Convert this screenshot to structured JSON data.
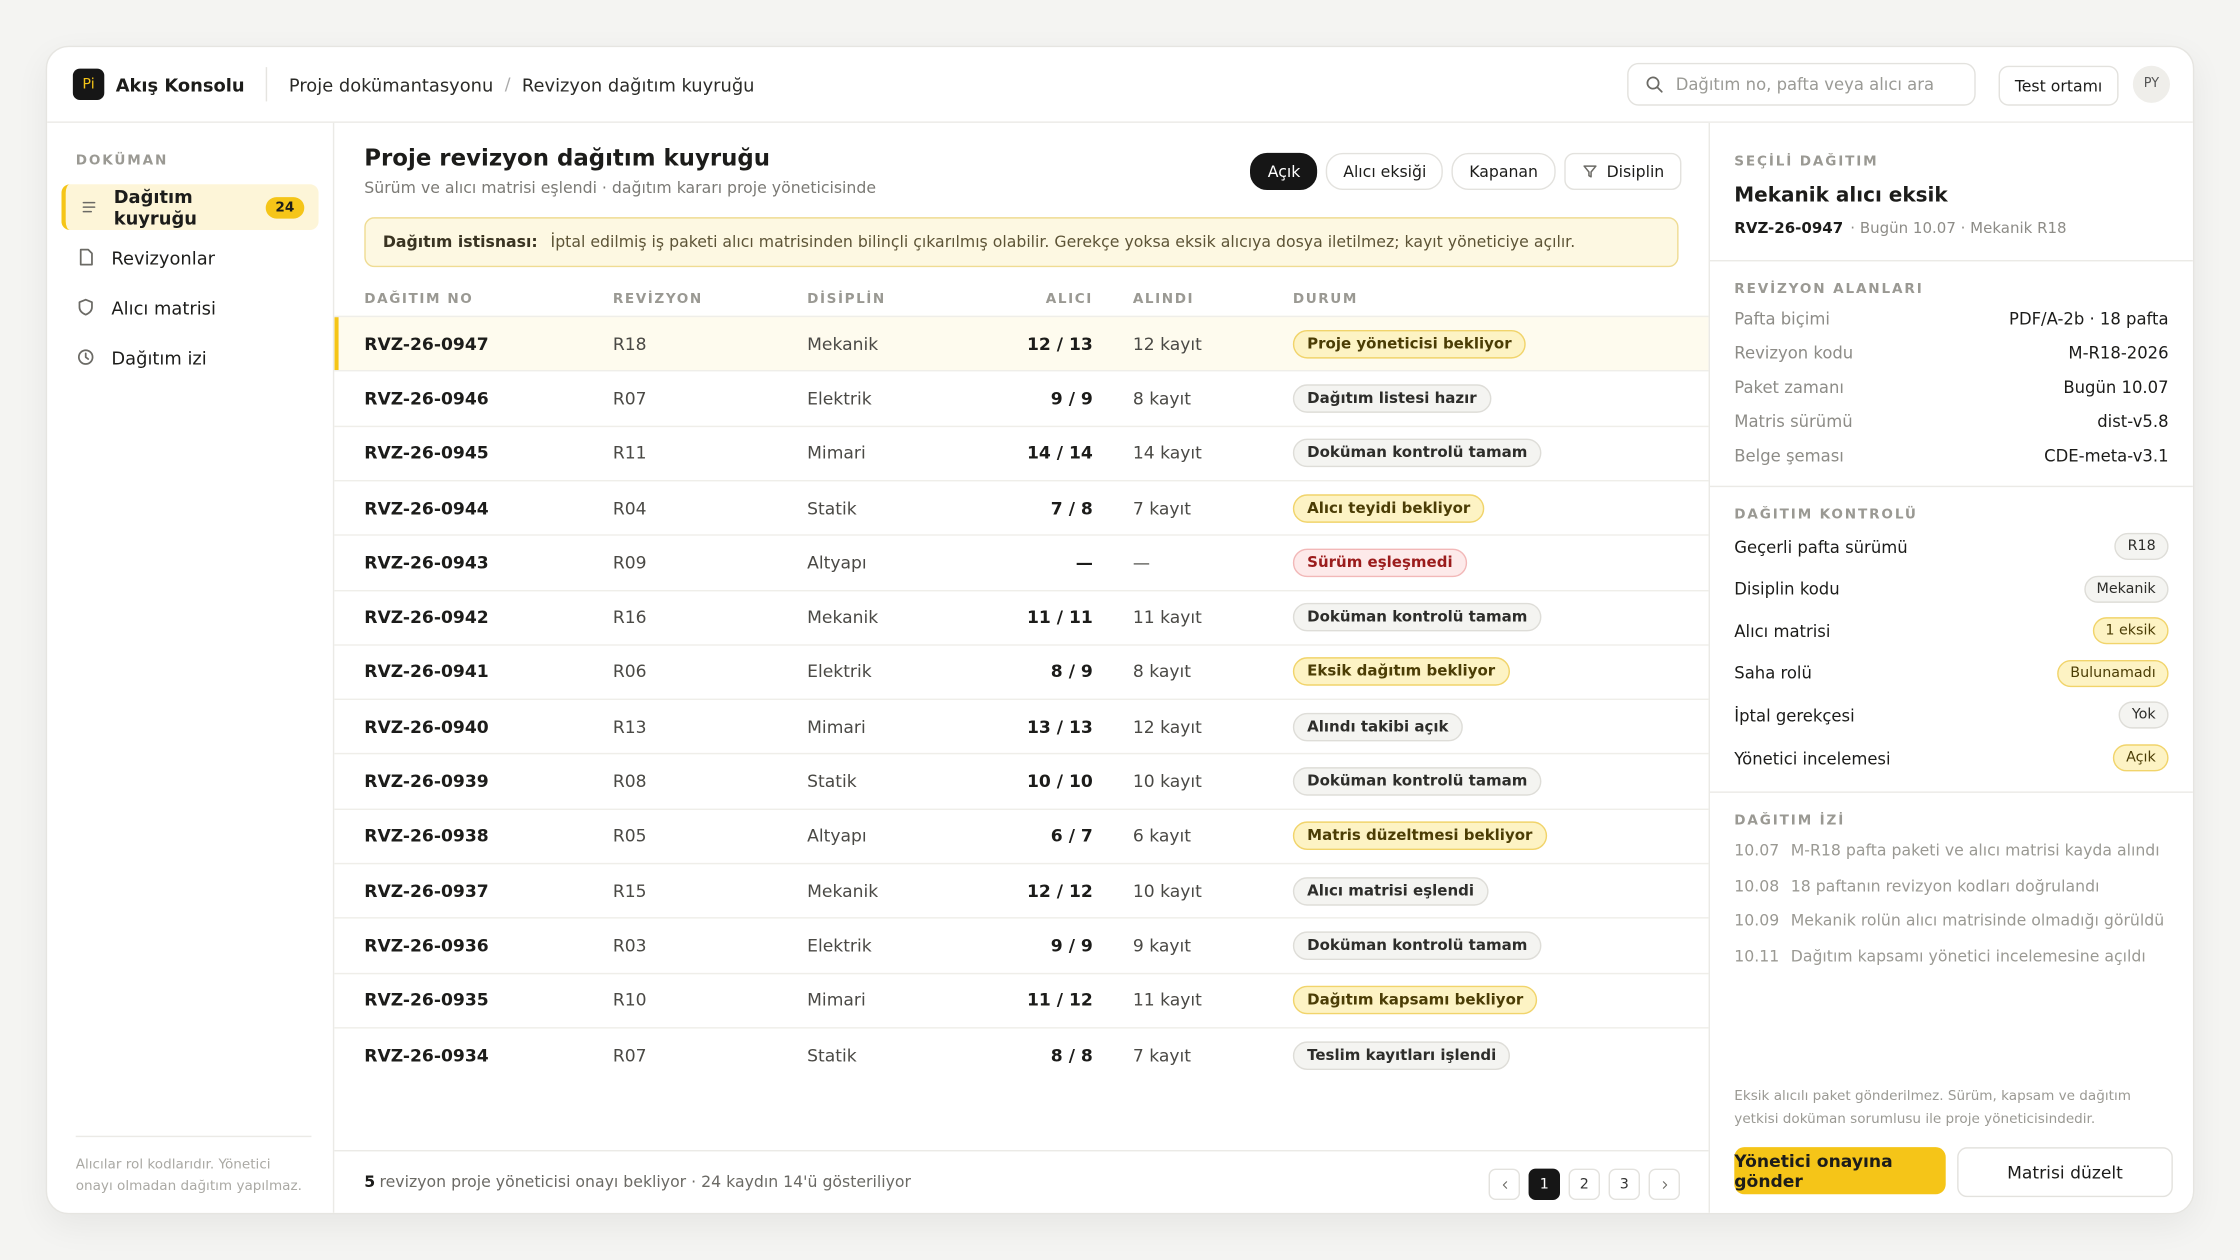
{
  "header": {
    "logo": "Pi",
    "app": "Akış Konsolu",
    "breadcrumb": [
      "Proje dokümantasyonu",
      "Revizyon dağıtım kuyruğu"
    ],
    "breadcrumb_sep": "/",
    "search_placeholder": "Dağıtım no, pafta veya alıcı ara",
    "env": "Test ortamı",
    "avatar": "PY"
  },
  "sidebar": {
    "section": "DOKÜMAN",
    "items": [
      {
        "label": "Dağıtım kuyruğu",
        "badge": "24",
        "active": true
      },
      {
        "label": "Revizyonlar"
      },
      {
        "label": "Alıcı matrisi"
      },
      {
        "label": "Dağıtım izi"
      }
    ],
    "note": "Alıcılar rol kodlarıdır. Yönetici onayı olmadan dağıtım yapılmaz."
  },
  "main": {
    "title": "Proje revizyon dağıtım kuyruğu",
    "subtitle": "Sürüm ve alıcı matrisi eşlendi · dağıtım kararı proje yöneticisinde",
    "filters": [
      {
        "label": "Açık",
        "active": true
      },
      {
        "label": "Alıcı eksiği"
      },
      {
        "label": "Kapanan"
      }
    ],
    "filter_menu": "Disiplin",
    "notice": {
      "label": "Dağıtım istisnası:",
      "text": "İptal edilmiş iş paketi alıcı matrisinden bilinçli çıkarılmış olabilir. Gerekçe yoksa eksik alıcıya dosya iletilmez; kayıt yöneticiye açılır."
    },
    "table": {
      "columns": [
        "DAĞITIM NO",
        "REVİZYON",
        "DİSİPLİN",
        "ALICI",
        "ALINDI",
        "DURUM"
      ],
      "rows": [
        {
          "no": "RVZ-26-0947",
          "revision": "R18",
          "discipline": "Mekanik",
          "recipient": "12 / 13",
          "received": "12 kayıt",
          "status": "Proje yöneticisi bekliyor",
          "tone": "warn",
          "selected": true
        },
        {
          "no": "RVZ-26-0946",
          "revision": "R07",
          "discipline": "Elektrik",
          "recipient": "9 / 9",
          "received": "8 kayıt",
          "status": "Dağıtım listesi hazır",
          "tone": "neutral"
        },
        {
          "no": "RVZ-26-0945",
          "revision": "R11",
          "discipline": "Mimari",
          "recipient": "14 / 14",
          "received": "14 kayıt",
          "status": "Doküman kontrolü tamam",
          "tone": "neutral"
        },
        {
          "no": "RVZ-26-0944",
          "revision": "R04",
          "discipline": "Statik",
          "recipient": "7 / 8",
          "received": "7 kayıt",
          "status": "Alıcı teyidi bekliyor",
          "tone": "warn"
        },
        {
          "no": "RVZ-26-0943",
          "revision": "R09",
          "discipline": "Altyapı",
          "recipient": "—",
          "received": "—",
          "status": "Sürüm eşleşmedi",
          "tone": "error"
        },
        {
          "no": "RVZ-26-0942",
          "revision": "R16",
          "discipline": "Mekanik",
          "recipient": "11 / 11",
          "received": "11 kayıt",
          "status": "Doküman kontrolü tamam",
          "tone": "neutral"
        },
        {
          "no": "RVZ-26-0941",
          "revision": "R06",
          "discipline": "Elektrik",
          "recipient": "8 / 9",
          "received": "8 kayıt",
          "status": "Eksik dağıtım bekliyor",
          "tone": "warn"
        },
        {
          "no": "RVZ-26-0940",
          "revision": "R13",
          "discipline": "Mimari",
          "recipient": "13 / 13",
          "received": "12 kayıt",
          "status": "Alındı takibi açık",
          "tone": "neutral"
        },
        {
          "no": "RVZ-26-0939",
          "revision": "R08",
          "discipline": "Statik",
          "recipient": "10 / 10",
          "received": "10 kayıt",
          "status": "Doküman kontrolü tamam",
          "tone": "neutral"
        },
        {
          "no": "RVZ-26-0938",
          "revision": "R05",
          "discipline": "Altyapı",
          "recipient": "6 / 7",
          "received": "6 kayıt",
          "status": "Matris düzeltmesi bekliyor",
          "tone": "warn"
        },
        {
          "no": "RVZ-26-0937",
          "revision": "R15",
          "discipline": "Mekanik",
          "recipient": "12 / 12",
          "received": "10 kayıt",
          "status": "Alıcı matrisi eşlendi",
          "tone": "neutral"
        },
        {
          "no": "RVZ-26-0936",
          "revision": "R03",
          "discipline": "Elektrik",
          "recipient": "9 / 9",
          "received": "9 kayıt",
          "status": "Doküman kontrolü tamam",
          "tone": "neutral"
        },
        {
          "no": "RVZ-26-0935",
          "revision": "R10",
          "discipline": "Mimari",
          "recipient": "11 / 12",
          "received": "11 kayıt",
          "status": "Dağıtım kapsamı bekliyor",
          "tone": "warn"
        },
        {
          "no": "RVZ-26-0934",
          "revision": "R07",
          "discipline": "Statik",
          "recipient": "8 / 8",
          "received": "7 kayıt",
          "status": "Teslim kayıtları işlendi",
          "tone": "neutral"
        }
      ]
    },
    "footer": {
      "count": "5",
      "text": "revizyon proje yöneticisi onayı bekliyor · 24 kaydın 14'ü gösteriliyor",
      "pages": [
        "1",
        "2",
        "3"
      ],
      "current_page": "1"
    }
  },
  "panel": {
    "selected": {
      "section": "SEÇİLİ DAĞITIM",
      "title": "Mekanik alıcı eksik",
      "id": "RVZ-26-0947",
      "meta": "· Bugün 10.07 · Mekanik R18"
    },
    "fields": {
      "section": "REVİZYON ALANLARI",
      "rows": [
        {
          "label": "Pafta biçimi",
          "value": "PDF/A-2b · 18 pafta"
        },
        {
          "label": "Revizyon kodu",
          "value": "M-R18-2026"
        },
        {
          "label": "Paket zamanı",
          "value": "Bugün 10.07"
        },
        {
          "label": "Matris sürümü",
          "value": "dist-v5.8"
        },
        {
          "label": "Belge şeması",
          "value": "CDE-meta-v3.1"
        }
      ]
    },
    "checks": {
      "section": "DAĞITIM KONTROLÜ",
      "rows": [
        {
          "label": "Geçerli pafta sürümü",
          "value": "R18",
          "tone": "neutral"
        },
        {
          "label": "Disiplin kodu",
          "value": "Mekanik",
          "tone": "neutral"
        },
        {
          "label": "Alıcı matrisi",
          "value": "1 eksik",
          "tone": "warn"
        },
        {
          "label": "Saha rolü",
          "value": "Bulunamadı",
          "tone": "warn"
        },
        {
          "label": "İptal gerekçesi",
          "value": "Yok",
          "tone": "neutral"
        },
        {
          "label": "Yönetici incelemesi",
          "value": "Açık",
          "tone": "warn"
        }
      ]
    },
    "trail": {
      "section": "DAĞITIM İZİ",
      "entries": [
        {
          "time": "10.07",
          "text": "M-R18 pafta paketi ve alıcı matrisi kayda alındı"
        },
        {
          "time": "10.08",
          "text": "18 paftanın revizyon kodları doğrulandı"
        },
        {
          "time": "10.09",
          "text": "Mekanik rolün alıcı matrisinde olmadığı görüldü"
        },
        {
          "time": "10.11",
          "text": "Dağıtım kapsamı yönetici incelemesine açıldı"
        }
      ]
    },
    "note": "Eksik alıcılı paket gönderilmez. Sürüm, kapsam ve dağıtım yetkisi doküman sorumlusu ile proje yöneticisindedir.",
    "actions": {
      "primary": "Yönetici onayına gönder",
      "secondary": "Matrisi düzelt"
    }
  }
}
